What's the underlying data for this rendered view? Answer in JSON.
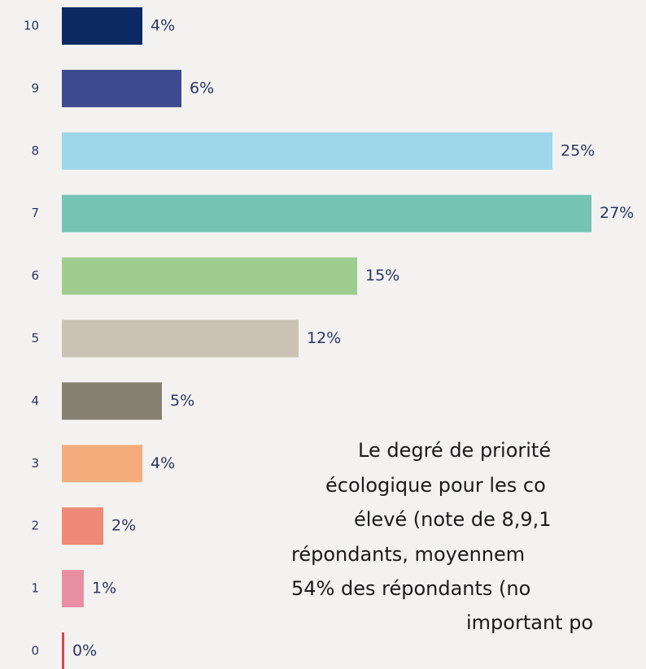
{
  "chart_data": {
    "type": "bar",
    "orientation": "horizontal",
    "categories": [
      "10",
      "9",
      "8",
      "7",
      "6",
      "5",
      "4",
      "3",
      "2",
      "1",
      "0"
    ],
    "values": [
      4,
      6,
      25,
      27,
      15,
      12,
      5,
      4,
      2,
      1,
      0
    ],
    "value_labels": [
      "4%",
      "6%",
      "25%",
      "27%",
      "15%",
      "12%",
      "5%",
      "4%",
      "2%",
      "1%",
      "0%"
    ],
    "colors": [
      "#0b2a63",
      "#3d4a8f",
      "#9dd5ea",
      "#75c4b6",
      "#9fcd8f",
      "#c9c2b5",
      "#868073",
      "#f5ac7c",
      "#ee8a76",
      "#e98fa3",
      "#d54451"
    ],
    "annotation": [
      "Le degré de priorité",
      "écologique pour les co",
      "élevé (note de 8,9,1",
      "répondants, moyennem",
      "54% des répondants (no",
      "important po"
    ]
  }
}
